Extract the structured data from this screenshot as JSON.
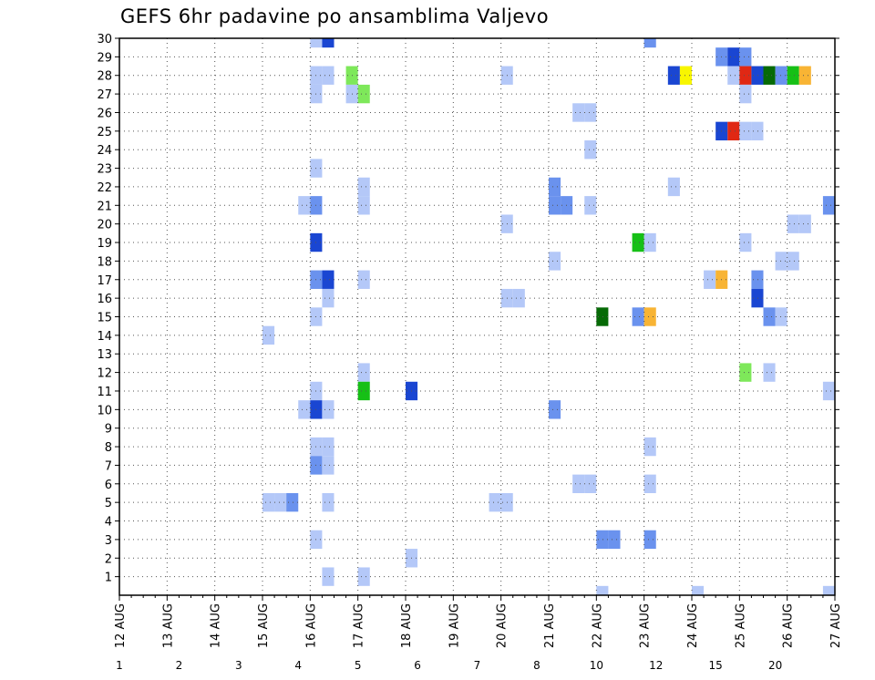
{
  "chart_data": {
    "type": "heatmap",
    "title": "GEFS 6hr padavine po ansamblima Valjevo",
    "xlabel": "",
    "ylabel": "",
    "x_tick_labels": [
      "12 AUG",
      "13 AUG",
      "14 AUG",
      "15 AUG",
      "16 AUG",
      "17 AUG",
      "18 AUG",
      "19 AUG",
      "20 AUG",
      "21 AUG",
      "22 AUG",
      "23 AUG",
      "24 AUG",
      "25 AUG",
      "26 AUG",
      "27 AUG"
    ],
    "x_range_steps": [
      0,
      60
    ],
    "x_step_hours": 6,
    "y_ticks": [
      1,
      2,
      3,
      4,
      5,
      6,
      7,
      8,
      9,
      10,
      11,
      12,
      13,
      14,
      15,
      16,
      17,
      18,
      19,
      20,
      21,
      22,
      23,
      24,
      25,
      26,
      27,
      28,
      29,
      30
    ],
    "y_range": [
      0,
      30
    ],
    "grid": true,
    "colorbar": {
      "labels": [
        "1",
        "2",
        "3",
        "4",
        "5",
        "6",
        "7",
        "8",
        "10",
        "12",
        "15",
        "20"
      ],
      "colors": [
        "#b4c8f8",
        "#6a92ee",
        "#1a46d2",
        "#7ee85a",
        "#16c016",
        "#066a06",
        "#f8f600",
        "#f8b434",
        "#f87e16",
        "#e02814",
        "#a80808",
        "#700404"
      ]
    },
    "cells": [
      {
        "step": 16,
        "member": 30,
        "level": 1
      },
      {
        "step": 17,
        "member": 30,
        "level": 3
      },
      {
        "step": 44,
        "member": 30,
        "level": 2
      },
      {
        "step": 50,
        "member": 29,
        "level": 2
      },
      {
        "step": 51,
        "member": 29,
        "level": 3
      },
      {
        "step": 52,
        "member": 29,
        "level": 2
      },
      {
        "step": 16,
        "member": 28,
        "level": 1
      },
      {
        "step": 17,
        "member": 28,
        "level": 1
      },
      {
        "step": 19,
        "member": 28,
        "level": 4
      },
      {
        "step": 32,
        "member": 28,
        "level": 1
      },
      {
        "step": 46,
        "member": 28,
        "level": 3
      },
      {
        "step": 47,
        "member": 28,
        "level": 7
      },
      {
        "step": 51,
        "member": 28,
        "level": 1
      },
      {
        "step": 52,
        "member": 28,
        "level": 10
      },
      {
        "step": 53,
        "member": 28,
        "level": 3
      },
      {
        "step": 54,
        "member": 28,
        "level": 6
      },
      {
        "step": 55,
        "member": 28,
        "level": 2
      },
      {
        "step": 56,
        "member": 28,
        "level": 5
      },
      {
        "step": 57,
        "member": 28,
        "level": 8
      },
      {
        "step": 16,
        "member": 27,
        "level": 1
      },
      {
        "step": 19,
        "member": 27,
        "level": 1
      },
      {
        "step": 20,
        "member": 27,
        "level": 4
      },
      {
        "step": 52,
        "member": 27,
        "level": 1
      },
      {
        "step": 38,
        "member": 26,
        "level": 1
      },
      {
        "step": 39,
        "member": 26,
        "level": 1
      },
      {
        "step": 50,
        "member": 25,
        "level": 3
      },
      {
        "step": 51,
        "member": 25,
        "level": 10
      },
      {
        "step": 52,
        "member": 25,
        "level": 1
      },
      {
        "step": 53,
        "member": 25,
        "level": 1
      },
      {
        "step": 39,
        "member": 24,
        "level": 1
      },
      {
        "step": 16,
        "member": 23,
        "level": 1
      },
      {
        "step": 20,
        "member": 22,
        "level": 1
      },
      {
        "step": 36,
        "member": 22,
        "level": 2
      },
      {
        "step": 46,
        "member": 22,
        "level": 1
      },
      {
        "step": 15,
        "member": 21,
        "level": 1
      },
      {
        "step": 16,
        "member": 21,
        "level": 2
      },
      {
        "step": 20,
        "member": 21,
        "level": 1
      },
      {
        "step": 36,
        "member": 21,
        "level": 2
      },
      {
        "step": 37,
        "member": 21,
        "level": 2
      },
      {
        "step": 39,
        "member": 21,
        "level": 1
      },
      {
        "step": 59,
        "member": 21,
        "level": 2
      },
      {
        "step": 32,
        "member": 20,
        "level": 1
      },
      {
        "step": 56,
        "member": 20,
        "level": 1
      },
      {
        "step": 57,
        "member": 20,
        "level": 1
      },
      {
        "step": 16,
        "member": 19,
        "level": 3
      },
      {
        "step": 43,
        "member": 19,
        "level": 5
      },
      {
        "step": 44,
        "member": 19,
        "level": 1
      },
      {
        "step": 52,
        "member": 19,
        "level": 1
      },
      {
        "step": 36,
        "member": 18,
        "level": 1
      },
      {
        "step": 55,
        "member": 18,
        "level": 1
      },
      {
        "step": 56,
        "member": 18,
        "level": 1
      },
      {
        "step": 16,
        "member": 17,
        "level": 2
      },
      {
        "step": 17,
        "member": 17,
        "level": 3
      },
      {
        "step": 20,
        "member": 17,
        "level": 1
      },
      {
        "step": 49,
        "member": 17,
        "level": 1
      },
      {
        "step": 50,
        "member": 17,
        "level": 8
      },
      {
        "step": 53,
        "member": 17,
        "level": 2
      },
      {
        "step": 17,
        "member": 16,
        "level": 1
      },
      {
        "step": 32,
        "member": 16,
        "level": 1
      },
      {
        "step": 33,
        "member": 16,
        "level": 1
      },
      {
        "step": 53,
        "member": 16,
        "level": 3
      },
      {
        "step": 16,
        "member": 15,
        "level": 1
      },
      {
        "step": 40,
        "member": 15,
        "level": 6
      },
      {
        "step": 43,
        "member": 15,
        "level": 2
      },
      {
        "step": 44,
        "member": 15,
        "level": 8
      },
      {
        "step": 54,
        "member": 15,
        "level": 2
      },
      {
        "step": 55,
        "member": 15,
        "level": 1
      },
      {
        "step": 12,
        "member": 14,
        "level": 1
      },
      {
        "step": 20,
        "member": 12,
        "level": 1
      },
      {
        "step": 52,
        "member": 12,
        "level": 4
      },
      {
        "step": 54,
        "member": 12,
        "level": 1
      },
      {
        "step": 16,
        "member": 11,
        "level": 1
      },
      {
        "step": 20,
        "member": 11,
        "level": 5
      },
      {
        "step": 24,
        "member": 11,
        "level": 3
      },
      {
        "step": 59,
        "member": 11,
        "level": 1
      },
      {
        "step": 15,
        "member": 10,
        "level": 1
      },
      {
        "step": 16,
        "member": 10,
        "level": 3
      },
      {
        "step": 17,
        "member": 10,
        "level": 1
      },
      {
        "step": 36,
        "member": 10,
        "level": 2
      },
      {
        "step": 44,
        "member": 8,
        "level": 1
      },
      {
        "step": 16,
        "member": 8,
        "level": 1
      },
      {
        "step": 17,
        "member": 8,
        "level": 1
      },
      {
        "step": 16,
        "member": 7,
        "level": 2
      },
      {
        "step": 17,
        "member": 7,
        "level": 1
      },
      {
        "step": 38,
        "member": 6,
        "level": 1
      },
      {
        "step": 39,
        "member": 6,
        "level": 1
      },
      {
        "step": 44,
        "member": 6,
        "level": 1
      },
      {
        "step": 12,
        "member": 5,
        "level": 1
      },
      {
        "step": 13,
        "member": 5,
        "level": 1
      },
      {
        "step": 14,
        "member": 5,
        "level": 2
      },
      {
        "step": 17,
        "member": 5,
        "level": 1
      },
      {
        "step": 31,
        "member": 5,
        "level": 1
      },
      {
        "step": 32,
        "member": 5,
        "level": 1
      },
      {
        "step": 16,
        "member": 3,
        "level": 1
      },
      {
        "step": 40,
        "member": 3,
        "level": 2
      },
      {
        "step": 41,
        "member": 3,
        "level": 2
      },
      {
        "step": 44,
        "member": 3,
        "level": 2
      },
      {
        "step": 24,
        "member": 2,
        "level": 1
      },
      {
        "step": 17,
        "member": 1,
        "level": 1
      },
      {
        "step": 20,
        "member": 1,
        "level": 1
      },
      {
        "step": 40,
        "member": 0,
        "level": 1
      },
      {
        "step": 48,
        "member": 0,
        "level": 1
      },
      {
        "step": 59,
        "member": 0,
        "level": 1
      }
    ]
  }
}
